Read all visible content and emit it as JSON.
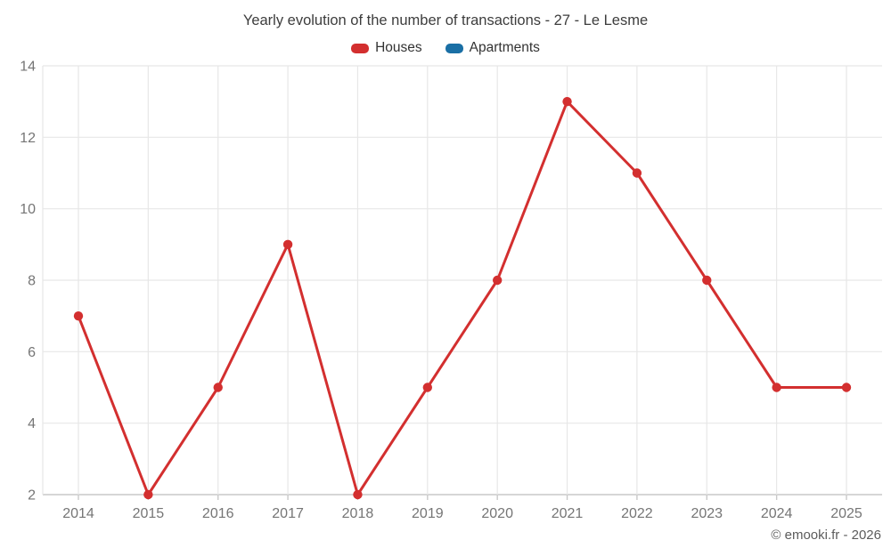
{
  "chart_data": {
    "type": "line",
    "title": "Yearly evolution of the number of transactions - 27 - Le Lesme",
    "categories": [
      "2014",
      "2015",
      "2016",
      "2017",
      "2018",
      "2019",
      "2020",
      "2021",
      "2022",
      "2023",
      "2024",
      "2025"
    ],
    "series": [
      {
        "name": "Houses",
        "color": "#d32f2f",
        "values": [
          7,
          2,
          5,
          9,
          2,
          5,
          8,
          13,
          11,
          8,
          5,
          5
        ]
      },
      {
        "name": "Apartments",
        "color": "#1a6fa5",
        "values": []
      }
    ],
    "xlabel": "",
    "ylabel": "",
    "ylim": [
      2,
      14
    ],
    "y_ticks": [
      2,
      4,
      6,
      8,
      10,
      12,
      14
    ],
    "grid": true,
    "legend_position": "top"
  },
  "colors": {
    "grid": "#e7e7e7",
    "axis": "#c9c9c9",
    "tick_label": "#757575",
    "title": "#3d3d3d"
  },
  "footer": {
    "watermark": "© emooki.fr - 2026"
  }
}
